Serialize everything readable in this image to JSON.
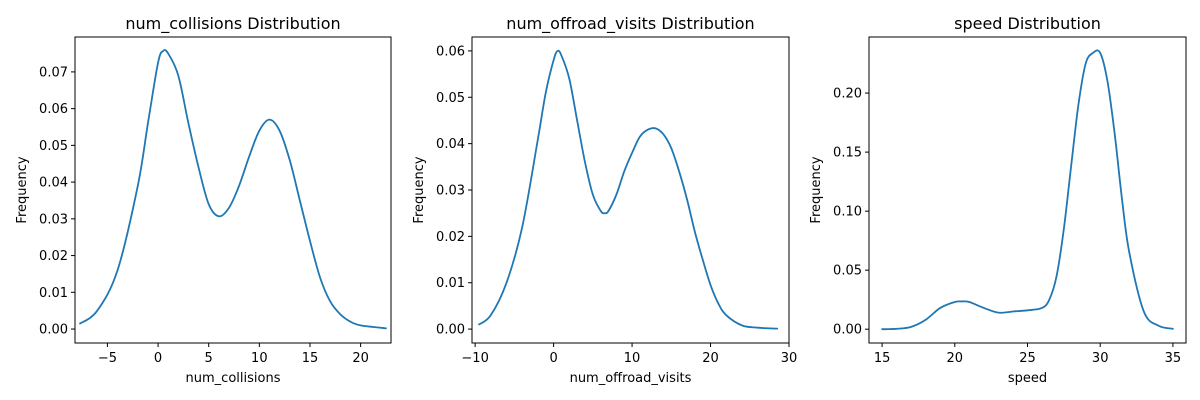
{
  "figure": {
    "background": "#ffffff",
    "line_color": "#1f77b4"
  },
  "chart_data": [
    {
      "type": "line",
      "title": "num_collisions  Distribution",
      "xlabel": "num_collisions",
      "ylabel": "Frequency",
      "xlim": [
        -8.2,
        23.0
      ],
      "ylim": [
        -0.0038,
        0.0795
      ],
      "xticks": [
        -5,
        0,
        5,
        10,
        15,
        20
      ],
      "yticks": [
        0.0,
        0.01,
        0.02,
        0.03,
        0.04,
        0.05,
        0.06,
        0.07
      ],
      "ytick_decimals": 2,
      "grid": false,
      "series": [
        {
          "x": [
            -7.7,
            -6,
            -4,
            -2,
            -1,
            0,
            0.5,
            1,
            2,
            3,
            4,
            5,
            6,
            7,
            8,
            9,
            10,
            11,
            12,
            13,
            14,
            15,
            16,
            17,
            18,
            19,
            20,
            22.5
          ],
          "y": [
            0.0015,
            0.005,
            0.016,
            0.039,
            0.056,
            0.0725,
            0.0757,
            0.075,
            0.069,
            0.056,
            0.044,
            0.034,
            0.0307,
            0.033,
            0.039,
            0.047,
            0.054,
            0.057,
            0.054,
            0.046,
            0.035,
            0.024,
            0.014,
            0.0075,
            0.004,
            0.002,
            0.001,
            0.0002
          ]
        }
      ]
    },
    {
      "type": "line",
      "title": "num_offroad_visits  Distribution",
      "xlabel": "num_offroad_visits",
      "ylabel": "Frequency",
      "xlim": [
        -10.4,
        30.0
      ],
      "ylim": [
        -0.003,
        0.063
      ],
      "xticks": [
        -10,
        0,
        10,
        20,
        30
      ],
      "yticks": [
        0.0,
        0.01,
        0.02,
        0.03,
        0.04,
        0.05,
        0.06
      ],
      "ytick_decimals": 2,
      "grid": false,
      "series": [
        {
          "x": [
            -9.5,
            -8,
            -6,
            -4,
            -2,
            -1,
            0,
            0.5,
            1,
            2,
            3,
            4,
            5,
            6,
            6.5,
            7,
            8,
            9,
            10,
            11,
            12,
            13,
            14,
            15,
            16,
            17,
            18,
            19,
            20,
            21,
            22,
            24,
            26,
            28.5
          ],
          "y": [
            0.001,
            0.003,
            0.01,
            0.022,
            0.041,
            0.051,
            0.058,
            0.06,
            0.059,
            0.054,
            0.045,
            0.036,
            0.029,
            0.0255,
            0.025,
            0.0255,
            0.029,
            0.034,
            0.038,
            0.0415,
            0.043,
            0.0433,
            0.042,
            0.039,
            0.034,
            0.028,
            0.021,
            0.015,
            0.0095,
            0.0055,
            0.003,
            0.0008,
            0.0003,
            0.0001
          ]
        }
      ]
    },
    {
      "type": "line",
      "title": "speed  Distribution",
      "xlabel": "speed",
      "ylabel": "Frequency",
      "xlim": [
        14.1,
        35.9
      ],
      "ylim": [
        -0.0117,
        0.2475
      ],
      "xticks": [
        15,
        20,
        25,
        30,
        35
      ],
      "yticks": [
        0.0,
        0.05,
        0.1,
        0.15,
        0.2
      ],
      "ytick_decimals": 2,
      "grid": false,
      "series": [
        {
          "x": [
            15,
            16,
            17,
            18,
            19,
            20,
            20.5,
            21,
            22,
            23,
            24,
            25,
            26,
            26.5,
            27,
            27.5,
            28,
            28.5,
            29,
            29.5,
            30,
            30.5,
            31,
            31.5,
            32,
            33,
            34,
            35
          ],
          "y": [
            0.0,
            0.0003,
            0.002,
            0.008,
            0.018,
            0.023,
            0.0235,
            0.023,
            0.018,
            0.014,
            0.015,
            0.016,
            0.018,
            0.025,
            0.045,
            0.085,
            0.138,
            0.19,
            0.225,
            0.234,
            0.234,
            0.21,
            0.165,
            0.11,
            0.065,
            0.015,
            0.003,
            0.0003
          ]
        }
      ]
    }
  ]
}
